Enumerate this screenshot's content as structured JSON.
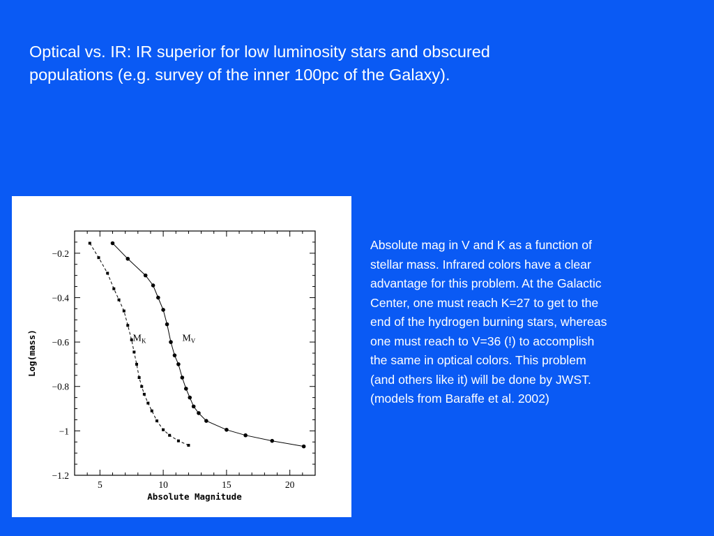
{
  "slide": {
    "title": "Optical vs. IR: IR superior for low luminosity stars and obscured\npopulations (e.g. survey of the inner 100pc of the Galaxy).",
    "caption": "Absolute mag  in V and K as a function of\nstellar mass.  Infrared colors have a clear\nadvantage for this problem.  At the Galactic\nCenter, one must reach K=27 to get to the\nend of the hydrogen burning stars, whereas\none must reach to V=36 (!) to accomplish\nthe same in optical colors.  This problem\n(and others like it) will be done by JWST.\n(models from Baraffe et al. 2002)"
  },
  "chart_data": {
    "type": "line",
    "title": "",
    "xlabel": "Absolute Magnitude",
    "ylabel": "Log(mass)",
    "xlim": [
      3,
      22
    ],
    "ylim": [
      -1.2,
      -0.1
    ],
    "xticks": [
      5,
      10,
      15,
      20
    ],
    "yticks": [
      -0.2,
      -0.4,
      -0.6,
      -0.8,
      -1,
      -1.2
    ],
    "ytick_labels": [
      "−0.2",
      "−0.4",
      "−0.6",
      "−0.8",
      "−1",
      "−1.2"
    ],
    "grid": false,
    "legend": "none",
    "series": [
      {
        "name": "M",
        "subscript": "K",
        "line_style": "dashed",
        "marker": "square",
        "label_at": [
          7.6,
          -0.595
        ],
        "x": [
          4.2,
          4.9,
          5.6,
          6.1,
          6.5,
          6.9,
          7.2,
          7.5,
          7.7,
          7.9,
          8.1,
          8.3,
          8.5,
          8.8,
          9.1,
          9.5,
          10.0,
          10.5,
          11.2,
          12.0
        ],
        "y": [
          -0.155,
          -0.22,
          -0.29,
          -0.36,
          -0.41,
          -0.46,
          -0.525,
          -0.59,
          -0.645,
          -0.7,
          -0.76,
          -0.8,
          -0.835,
          -0.875,
          -0.91,
          -0.955,
          -0.995,
          -1.02,
          -1.045,
          -1.065
        ]
      },
      {
        "name": "M",
        "subscript": "V",
        "line_style": "solid",
        "marker": "circle",
        "label_at": [
          11.5,
          -0.595
        ],
        "x": [
          6.0,
          7.2,
          8.6,
          9.2,
          9.6,
          10.0,
          10.3,
          10.6,
          10.9,
          11.2,
          11.5,
          11.8,
          12.1,
          12.4,
          12.8,
          13.4,
          15.0,
          16.5,
          18.6,
          21.1
        ],
        "y": [
          -0.155,
          -0.225,
          -0.3,
          -0.345,
          -0.4,
          -0.455,
          -0.52,
          -0.6,
          -0.66,
          -0.7,
          -0.76,
          -0.81,
          -0.85,
          -0.89,
          -0.92,
          -0.955,
          -0.995,
          -1.02,
          -1.045,
          -1.07
        ]
      }
    ]
  }
}
